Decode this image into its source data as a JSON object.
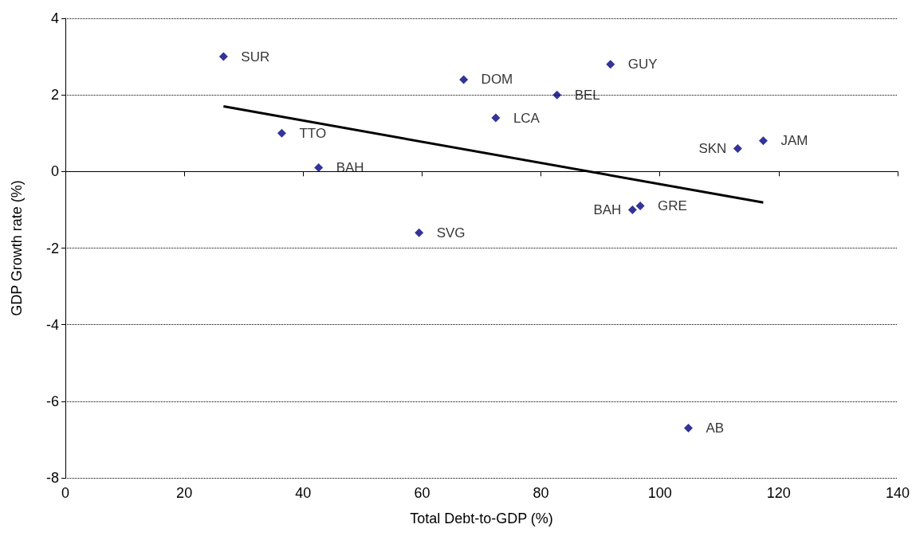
{
  "chart_data": {
    "type": "scatter",
    "xlabel": "Total Debt-to-GDP (%)",
    "ylabel": "GDP Growth rate (%)",
    "xlim": [
      0,
      140
    ],
    "xticks": [
      0,
      20,
      40,
      60,
      80,
      100,
      120,
      140
    ],
    "ylim": [
      -8,
      4
    ],
    "yticks": [
      -8,
      -6,
      -4,
      -2,
      0,
      2,
      4
    ],
    "grid": "y",
    "series": [
      {
        "marker": "diamond",
        "color": "#000080",
        "x": [
          26.6,
          36.4,
          42.6,
          59.5,
          67.0,
          72.4,
          82.7,
          91.7,
          95.4,
          96.7,
          104.8,
          113.1,
          117.4
        ],
        "values": [
          3.0,
          1.0,
          0.1,
          -1.6,
          2.4,
          1.4,
          2.0,
          2.8,
          -1.0,
          -0.9,
          -6.7,
          0.6,
          0.8
        ]
      },
      {
        "type": "line",
        "marker": "none",
        "color": "#000000",
        "x": [
          26.6,
          117.4
        ],
        "values": [
          1.7,
          -0.81
        ]
      }
    ],
    "annotations": [
      {
        "text": "SUR",
        "x": 26.6,
        "y": 3.0
      },
      {
        "text": "TTO",
        "x": 36.4,
        "y": 1.0
      },
      {
        "text": "BAH",
        "x": 42.6,
        "y": 0.1
      },
      {
        "text": "SVG",
        "x": 59.5,
        "y": -1.6
      },
      {
        "text": "DOM",
        "x": 67.0,
        "y": 2.4
      },
      {
        "text": "LCA",
        "x": 72.4,
        "y": 1.4
      },
      {
        "text": "BEL",
        "x": 82.7,
        "y": 2.0
      },
      {
        "text": "GUY",
        "x": 91.7,
        "y": 2.8
      },
      {
        "text": "BAH",
        "x": 95.4,
        "y": -1.0
      },
      {
        "text": "GRE",
        "x": 96.7,
        "y": -0.9
      },
      {
        "text": "AB",
        "x": 104.8,
        "y": -6.7
      },
      {
        "text": "SKN",
        "x": 113.1,
        "y": 0.6
      },
      {
        "text": "JAM",
        "x": 117.4,
        "y": 0.8
      }
    ]
  }
}
